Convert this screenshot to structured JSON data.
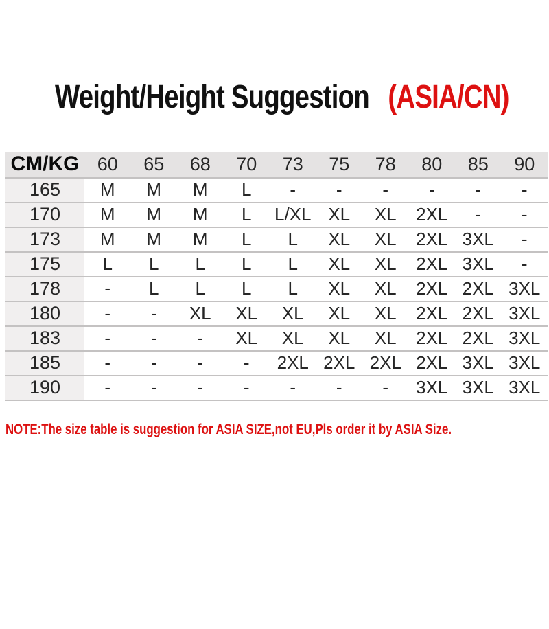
{
  "page": {
    "title": {
      "black": "Weight/Height Suggestion",
      "red": "(ASIA/CN)"
    },
    "note": "NOTE:The size table is suggestion for ASIA SIZE,not EU,Pls order it by ASIA Size."
  },
  "size_table": {
    "corner_label": "CM/KG",
    "weight_headers": [
      "60",
      "65",
      "68",
      "70",
      "73",
      "75",
      "78",
      "80",
      "85",
      "90"
    ],
    "rows": [
      {
        "height": "165",
        "cells": [
          "M",
          "M",
          "M",
          "L",
          "-",
          "-",
          "-",
          "-",
          "-",
          "-"
        ]
      },
      {
        "height": "170",
        "cells": [
          "M",
          "M",
          "M",
          "L",
          "L/XL",
          "XL",
          "XL",
          "2XL",
          "-",
          "-"
        ]
      },
      {
        "height": "173",
        "cells": [
          "M",
          "M",
          "M",
          "L",
          "L",
          "XL",
          "XL",
          "2XL",
          "3XL",
          "-"
        ]
      },
      {
        "height": "175",
        "cells": [
          "L",
          "L",
          "L",
          "L",
          "L",
          "XL",
          "XL",
          "2XL",
          "3XL",
          "-"
        ]
      },
      {
        "height": "178",
        "cells": [
          "-",
          "L",
          "L",
          "L",
          "L",
          "XL",
          "XL",
          "2XL",
          "2XL",
          "3XL"
        ]
      },
      {
        "height": "180",
        "cells": [
          "-",
          "-",
          "XL",
          "XL",
          "XL",
          "XL",
          "XL",
          "2XL",
          "2XL",
          "3XL"
        ]
      },
      {
        "height": "183",
        "cells": [
          "-",
          "-",
          "-",
          "XL",
          "XL",
          "XL",
          "XL",
          "2XL",
          "2XL",
          "3XL"
        ]
      },
      {
        "height": "185",
        "cells": [
          "-",
          "-",
          "-",
          "-",
          "2XL",
          "2XL",
          "2XL",
          "2XL",
          "3XL",
          "3XL"
        ]
      },
      {
        "height": "190",
        "cells": [
          "-",
          "-",
          "-",
          "-",
          "-",
          "-",
          "-",
          "3XL",
          "3XL",
          "3XL"
        ]
      }
    ]
  },
  "colors": {
    "accent_red": "#dd1111",
    "header_bg": "#e5e3e3",
    "label_col_bg": "#f1efef",
    "divider": "#c4c2c2",
    "text": "#262626"
  },
  "chart_data": {
    "type": "table",
    "title": "Weight/Height Suggestion (ASIA/CN)",
    "corner": "CM/KG",
    "columns_weight_kg": [
      60,
      65,
      68,
      70,
      73,
      75,
      78,
      80,
      85,
      90
    ],
    "rows_height_cm": [
      165,
      170,
      173,
      175,
      178,
      180,
      183,
      185,
      190
    ],
    "cells": [
      [
        "M",
        "M",
        "M",
        "L",
        "-",
        "-",
        "-",
        "-",
        "-",
        "-"
      ],
      [
        "M",
        "M",
        "M",
        "L",
        "L/XL",
        "XL",
        "XL",
        "2XL",
        "-",
        "-"
      ],
      [
        "M",
        "M",
        "M",
        "L",
        "L",
        "XL",
        "XL",
        "2XL",
        "3XL",
        "-"
      ],
      [
        "L",
        "L",
        "L",
        "L",
        "L",
        "XL",
        "XL",
        "2XL",
        "3XL",
        "-"
      ],
      [
        "-",
        "L",
        "L",
        "L",
        "L",
        "XL",
        "XL",
        "2XL",
        "2XL",
        "3XL"
      ],
      [
        "-",
        "-",
        "XL",
        "XL",
        "XL",
        "XL",
        "XL",
        "2XL",
        "2XL",
        "3XL"
      ],
      [
        "-",
        "-",
        "-",
        "XL",
        "XL",
        "XL",
        "XL",
        "2XL",
        "2XL",
        "3XL"
      ],
      [
        "-",
        "-",
        "-",
        "-",
        "2XL",
        "2XL",
        "2XL",
        "2XL",
        "3XL",
        "3XL"
      ],
      [
        "-",
        "-",
        "-",
        "-",
        "-",
        "-",
        "-",
        "3XL",
        "3XL",
        "3XL"
      ]
    ],
    "note": "NOTE:The size table is suggestion for ASIA SIZE,not EU,Pls order it by ASIA Size."
  }
}
